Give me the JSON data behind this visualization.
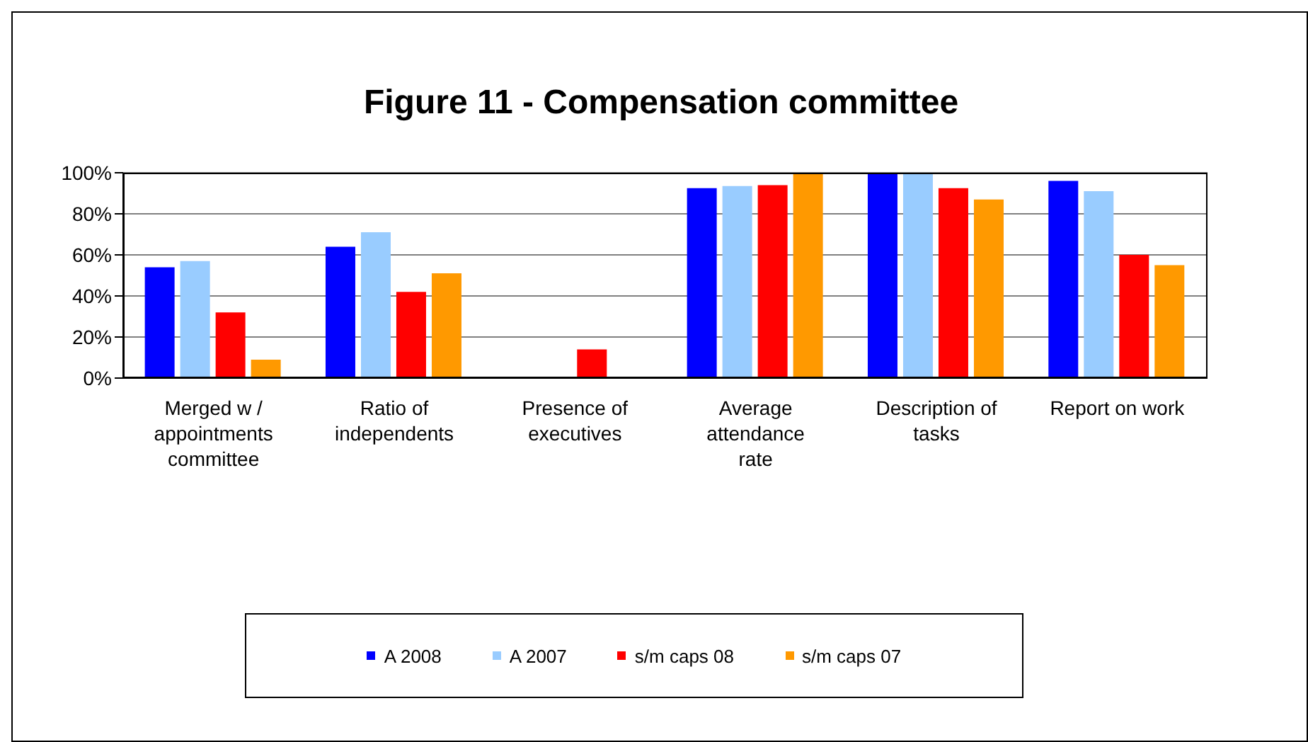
{
  "chart_data": {
    "type": "bar",
    "title": "Figure 11 - Compensation committee",
    "categories": [
      "Merged w / appointments committee",
      "Ratio of independents",
      "Presence of executives",
      "Average attendance rate",
      "Description of tasks",
      "Report on work"
    ],
    "series": [
      {
        "name": "A 2008",
        "color": "#0000ff",
        "values": [
          54,
          64,
          0,
          92.5,
          99.5,
          96
        ]
      },
      {
        "name": "A 2007",
        "color": "#99ccff",
        "values": [
          57,
          71,
          0,
          93.5,
          99.5,
          91
        ]
      },
      {
        "name": "s/m caps 08",
        "color": "#ff0000",
        "values": [
          32,
          42,
          14,
          94,
          92.5,
          60
        ]
      },
      {
        "name": "s/m caps 07",
        "color": "#ff9900",
        "values": [
          9,
          51,
          0,
          99.5,
          87,
          55
        ]
      }
    ],
    "ylim": [
      0,
      100
    ],
    "yticks": [
      {
        "value": 0,
        "label": "0%"
      },
      {
        "value": 20,
        "label": "20%"
      },
      {
        "value": 40,
        "label": "40%"
      },
      {
        "value": 60,
        "label": "60%"
      },
      {
        "value": 80,
        "label": "80%"
      },
      {
        "value": 100,
        "label": "100%"
      }
    ],
    "grid": "y",
    "legend": "bottom",
    "marker": "square"
  }
}
